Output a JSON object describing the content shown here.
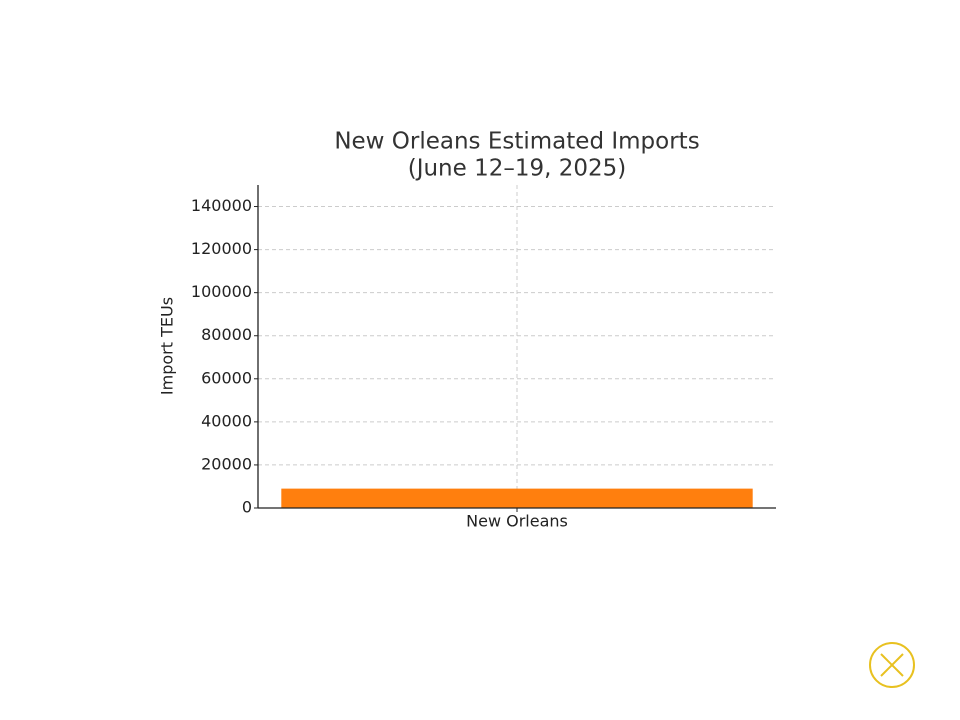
{
  "chart_data": {
    "type": "bar",
    "title": [
      "New Orleans Estimated Imports",
      "(June 12–19, 2025)"
    ],
    "y_label": "Import TEUs",
    "categories": [
      "New Orleans"
    ],
    "values": [
      9000
    ],
    "color": "#ff7f0e",
    "ylim": [
      0,
      150000
    ],
    "yticks": [
      0,
      20000,
      40000,
      60000,
      80000,
      100000,
      120000,
      140000
    ],
    "grid": true
  }
}
